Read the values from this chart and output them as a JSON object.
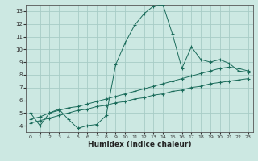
{
  "xlabel": "Humidex (Indice chaleur)",
  "xlim": [
    -0.5,
    23.5
  ],
  "ylim": [
    3.5,
    13.5
  ],
  "xticks": [
    0,
    1,
    2,
    3,
    4,
    5,
    6,
    7,
    8,
    9,
    10,
    11,
    12,
    13,
    14,
    15,
    16,
    17,
    18,
    19,
    20,
    21,
    22,
    23
  ],
  "yticks": [
    4,
    5,
    6,
    7,
    8,
    9,
    10,
    11,
    12,
    13
  ],
  "bg_color": "#cce8e2",
  "grid_color": "#a8ccc6",
  "line_color": "#1a6b5a",
  "line1_y": [
    5.0,
    4.0,
    5.0,
    5.3,
    4.5,
    3.8,
    4.0,
    4.1,
    4.8,
    8.8,
    10.5,
    11.9,
    12.8,
    13.4,
    13.5,
    11.2,
    8.5,
    10.2,
    9.2,
    9.0,
    9.2,
    8.9,
    8.3,
    8.2
  ],
  "line2_y": [
    4.5,
    4.7,
    5.0,
    5.2,
    5.4,
    5.5,
    5.7,
    5.9,
    6.1,
    6.3,
    6.5,
    6.7,
    6.9,
    7.1,
    7.3,
    7.5,
    7.7,
    7.9,
    8.1,
    8.3,
    8.5,
    8.6,
    8.5,
    8.3
  ],
  "line3_y": [
    4.2,
    4.4,
    4.6,
    4.8,
    5.0,
    5.2,
    5.3,
    5.5,
    5.6,
    5.8,
    5.9,
    6.1,
    6.2,
    6.4,
    6.5,
    6.7,
    6.8,
    7.0,
    7.1,
    7.3,
    7.4,
    7.5,
    7.6,
    7.7
  ]
}
